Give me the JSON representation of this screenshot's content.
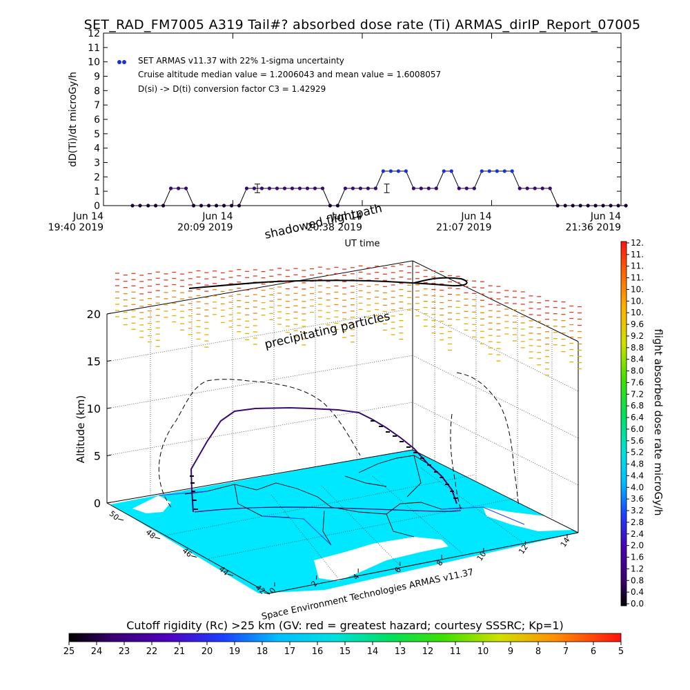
{
  "title": "SET_RAD_FM7005  A319 Tail#? absorbed dose rate (Ti) ARMAS_dirIP_Report_07005",
  "colors": {
    "points_blue": "#1a2fd6",
    "points_purple": "#3a0a6e",
    "points_dark": "#1a0030",
    "sea": "#00e8ff",
    "land": "#ffffff",
    "dash_red": "#e23a1a",
    "dash_orange": "#e08a10",
    "dash_yellow": "#e0b000"
  },
  "chart_data": [
    {
      "type": "line",
      "ylabel": "dD(Ti)/dt microGy/h",
      "xlabel": "UT time",
      "ylim": [
        0,
        12
      ],
      "yticks": [
        "0",
        "1",
        "2",
        "3",
        "4",
        "5",
        "6",
        "7",
        "8",
        "9",
        "10",
        "11",
        "12"
      ],
      "xticks": [
        {
          "line1": "Jun 14",
          "line2": "19:40 2019"
        },
        {
          "line1": "Jun 14",
          "line2": "20:09 2019"
        },
        {
          "line1": "Jun 14",
          "line2": "20:38 2019"
        },
        {
          "line1": "Jun 14",
          "line2": "21:07 2019"
        },
        {
          "line1": "Jun 14",
          "line2": "21:36 2019"
        }
      ],
      "xlim_minutes": [
        0,
        116
      ],
      "legend": [
        "SET ARMAS v11.37 with 22% 1-sigma uncertainty",
        "Cruise altitude median value = 1.2006043 and mean value = 1.6008057",
        "D(si) -> D(ti) conversion factor C3 = 1.42929"
      ],
      "series": [
        {
          "x": [
            6.5,
            8.2,
            10.0,
            11.7,
            13.4,
            15.1,
            16.8,
            18.5,
            20.2,
            21.9,
            23.6,
            25.3,
            27.0,
            28.7,
            30.4,
            32.1,
            33.8,
            35.5,
            37.2,
            38.9,
            40.6,
            42.3,
            44.0,
            45.7,
            47.4,
            49.1,
            50.8,
            52.5,
            54.2,
            55.9,
            57.6,
            59.3,
            61.0,
            62.7,
            64.4,
            66.1,
            67.8,
            69.5,
            71.2,
            72.9,
            74.6,
            76.3,
            78.0,
            79.7,
            81.4,
            83.1,
            84.8,
            86.5,
            88.2,
            89.9,
            91.6,
            93.3,
            95.0,
            96.7,
            98.4,
            100.1,
            101.8,
            103.5,
            105.2,
            106.9,
            108.6,
            110.3,
            112.0,
            113.7,
            115.4,
            117.1
          ],
          "y": [
            0,
            0,
            0,
            0,
            0,
            1.2,
            1.2,
            1.2,
            0,
            0,
            0,
            0,
            0,
            0,
            0,
            1.2,
            1.2,
            1.2,
            1.2,
            1.2,
            1.2,
            1.2,
            1.2,
            1.2,
            1.2,
            1.2,
            0,
            0,
            1.2,
            1.2,
            1.2,
            1.2,
            1.2,
            2.4,
            2.4,
            2.4,
            2.4,
            1.2,
            1.2,
            1.2,
            1.2,
            2.4,
            2.4,
            1.2,
            1.2,
            1.2,
            2.4,
            2.4,
            2.4,
            2.4,
            2.4,
            1.2,
            1.2,
            1.2,
            1.2,
            1.2,
            0,
            0,
            0,
            0,
            0,
            0,
            0,
            0,
            0,
            0
          ]
        }
      ],
      "error_bars": [
        {
          "x": 34.5,
          "y": 1.2,
          "err": 0.3
        },
        {
          "x": 63.5,
          "y": 1.2,
          "err": 0.3
        }
      ]
    },
    {
      "type": "scatter",
      "ylabel": "Altitude (km)",
      "zticks": [
        "0",
        "5",
        "10",
        "15",
        "20"
      ],
      "lat_ticks": [
        "42",
        "44",
        "46",
        "48",
        "50"
      ],
      "lon_ticks": [
        "0",
        "2",
        "4",
        "6",
        "8",
        "10",
        "12",
        "14"
      ],
      "annotations": [
        "shadowed flightpath",
        "precipitating particles"
      ],
      "credit": "Space Environment Technologies ARMAS v11.37"
    }
  ],
  "colorbar_right": {
    "label": "flight absorbed dose rate microGy/h",
    "ticks": [
      "0.0",
      "0.4",
      "0.8",
      "1.2",
      "1.6",
      "2.0",
      "2.4",
      "2.8",
      "3.2",
      "3.6",
      "4.0",
      "4.4",
      "4.8",
      "5.2",
      "5.6",
      "6.0",
      "6.4",
      "6.8",
      "7.2",
      "7.6",
      "8.0",
      "8.4",
      "8.8",
      "9.2",
      "9.6",
      "10.",
      "10.",
      "10.",
      "11.",
      "11.",
      "11.",
      "12."
    ]
  },
  "colorbar_bottom": {
    "label": "Cutoff rigidity (Rc) >25 km (GV: red = greatest hazard; courtesy SSSRC; Kp=1)",
    "ticks": [
      "25",
      "24",
      "23",
      "22",
      "21",
      "20",
      "19",
      "18",
      "17",
      "16",
      "15",
      "14",
      "13",
      "12",
      "11",
      "10",
      "9",
      "8",
      "7",
      "6",
      "5"
    ]
  }
}
